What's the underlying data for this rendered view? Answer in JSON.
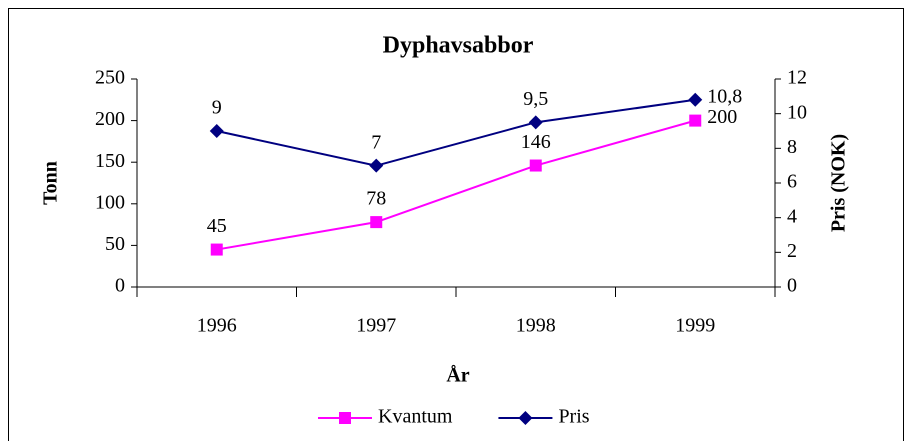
{
  "chart_data": {
    "type": "line",
    "title": "Dyphavsabbor",
    "xlabel": "År",
    "ylabel": "Tonn",
    "y2label": "Pris (NOK)",
    "categories": [
      "1996",
      "1997",
      "1998",
      "1999"
    ],
    "series": [
      {
        "name": "Kvantum",
        "color": "#ff00ff",
        "marker": "square",
        "values": [
          45,
          78,
          146,
          200
        ]
      },
      {
        "name": "Pris",
        "color": "#000080",
        "marker": "diamond",
        "axis": "y2",
        "values": [
          9,
          7,
          9.5,
          10.8
        ],
        "value_labels": [
          "9",
          "7",
          "9,5",
          "10,8"
        ]
      }
    ],
    "ylim": [
      0,
      250
    ],
    "yticks": [
      0,
      50,
      100,
      150,
      200,
      250
    ],
    "y2lim": [
      0,
      12
    ],
    "y2ticks": [
      0,
      2,
      4,
      6,
      8,
      10,
      12
    ],
    "grid": false,
    "legend": "bottom"
  }
}
